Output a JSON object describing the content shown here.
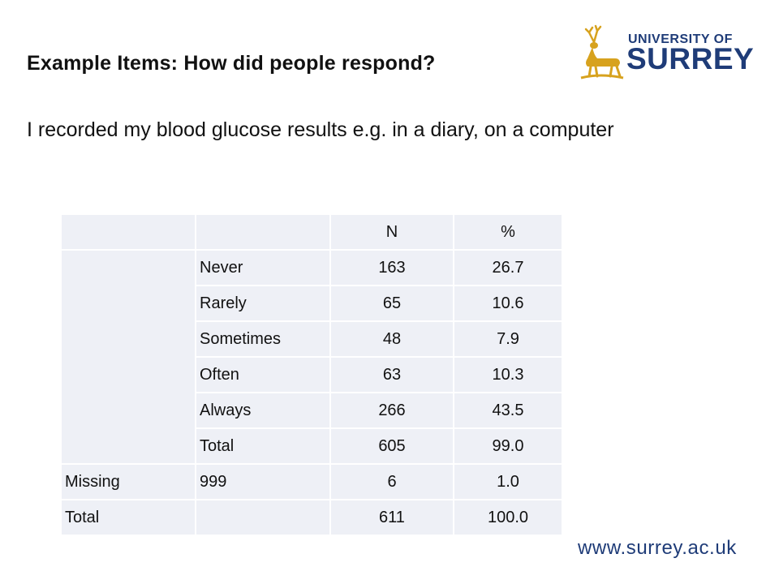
{
  "title": "Example Items: How did people respond?",
  "question": "I recorded my blood glucose results e.g. in a diary, on a computer",
  "logo": {
    "line1": "UNIVERSITY OF",
    "line2": "SURREY"
  },
  "footer_url": "www.surrey.ac.uk",
  "table": {
    "headers": [
      "N",
      "%"
    ],
    "rows": [
      {
        "label": "Never",
        "n": "163",
        "pct": "26.7"
      },
      {
        "label": "Rarely",
        "n": "65",
        "pct": "10.6"
      },
      {
        "label": "Sometimes",
        "n": "48",
        "pct": "7.9"
      },
      {
        "label": "Often",
        "n": "63",
        "pct": "10.3"
      },
      {
        "label": "Always",
        "n": "266",
        "pct": "43.5"
      },
      {
        "label": "Total",
        "n": "605",
        "pct": "99.0"
      }
    ],
    "missing": {
      "label": "Missing",
      "code": "999",
      "n": "6",
      "pct": "1.0"
    },
    "total": {
      "label": "Total",
      "n": "611",
      "pct": "100.0"
    }
  },
  "colors": {
    "brand": "#1f3c78",
    "logo_gold": "#d7a21e",
    "table_cell": "#eef0f6"
  }
}
